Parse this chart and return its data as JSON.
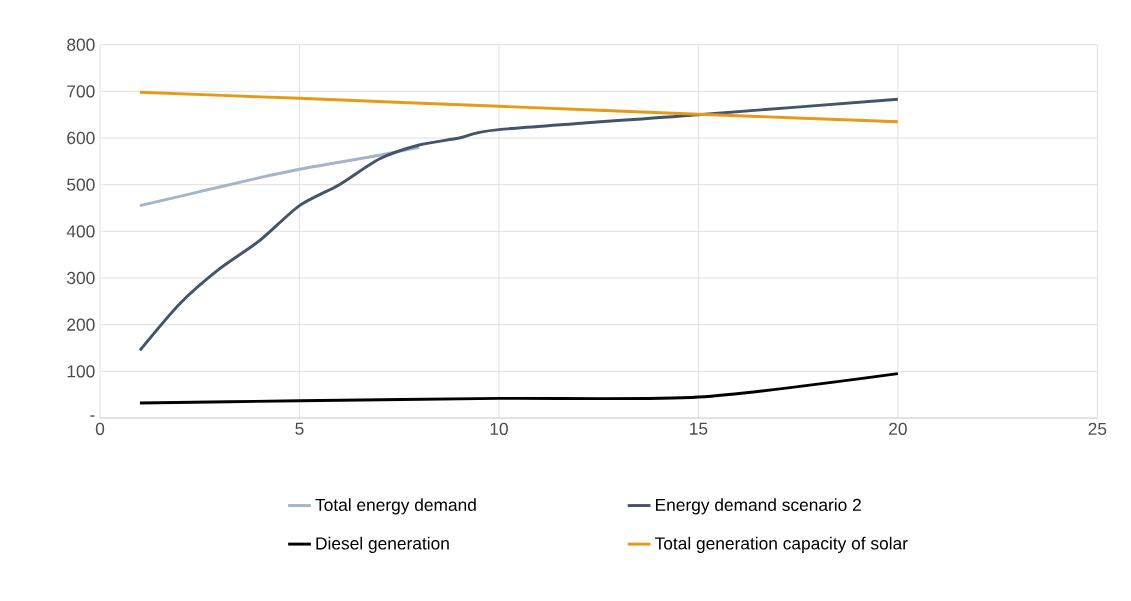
{
  "chart_data": {
    "type": "line",
    "x": [
      1,
      2,
      3,
      4,
      5,
      6,
      7,
      8,
      9,
      10,
      15,
      20
    ],
    "series": [
      {
        "name": "Total energy demand",
        "color": "#a5b4cb",
        "values": [
          455,
          475,
          495,
          515,
          533,
          548,
          563,
          580,
          null,
          null,
          null,
          null
        ]
      },
      {
        "name": "Energy demand scenario 2",
        "color": "#44546a",
        "values": [
          145,
          245,
          320,
          380,
          455,
          500,
          555,
          585,
          600,
          618,
          650,
          683
        ]
      },
      {
        "name": "Diesel generation",
        "color": "#000000",
        "x": [
          1,
          5,
          10,
          15,
          20
        ],
        "values": [
          32,
          37,
          42,
          45,
          95
        ]
      },
      {
        "name": "Total generation capacity of solar",
        "color": "#e69a16",
        "x": [
          1,
          5,
          10,
          15,
          20
        ],
        "values": [
          698,
          685,
          668,
          651,
          635
        ]
      }
    ],
    "xlim": [
      0,
      25
    ],
    "xticks": [
      0,
      5,
      10,
      15,
      20,
      25
    ],
    "ylim": [
      0,
      800
    ],
    "yticks": [
      {
        "value": 0,
        "label": "-"
      },
      100,
      200,
      300,
      400,
      500,
      600,
      700,
      800
    ],
    "grid": true,
    "legend": "bottom",
    "marker": "none",
    "line_style": "solid"
  }
}
